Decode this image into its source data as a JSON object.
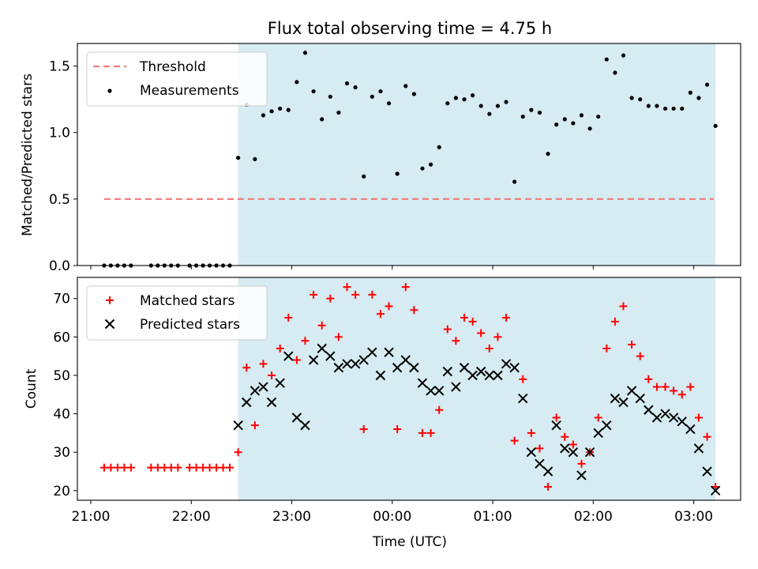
{
  "figure": {
    "title": "Flux total observing time = 4.75 h",
    "xlabel": "Time (UTC)"
  },
  "colors": {
    "highlight": "#add8e6",
    "threshold": "#f08080",
    "measurement": "#000000",
    "matched": "#ff0000",
    "predicted": "#000000"
  },
  "chart_data": [
    {
      "type": "scatter",
      "panel": "top",
      "ylabel": "Matched/Predicted stars",
      "xlim": [
        "20:52",
        "03:28"
      ],
      "ylim": [
        0,
        1.67
      ],
      "yticks": [
        0.0,
        0.5,
        1.0,
        1.5
      ],
      "xticks": [
        "21:00",
        "22:00",
        "23:00",
        "00:00",
        "01:00",
        "02:00",
        "03:00"
      ],
      "legend": {
        "position": "top-left",
        "entries": [
          "Threshold",
          "Measurements"
        ]
      },
      "highlight": {
        "from": "22:28",
        "to": "03:13"
      },
      "threshold": {
        "name": "Threshold",
        "y": 0.5,
        "from": "21:08",
        "to": "03:12"
      },
      "series": [
        {
          "name": "Measurements",
          "points": [
            [
              "21:08",
              0.0
            ],
            [
              "21:12",
              0.0
            ],
            [
              "21:16",
              0.0
            ],
            [
              "21:20",
              0.0
            ],
            [
              "21:24",
              0.0
            ],
            [
              "21:36",
              0.0
            ],
            [
              "21:40",
              0.0
            ],
            [
              "21:44",
              0.0
            ],
            [
              "21:48",
              0.0
            ],
            [
              "21:52",
              0.0
            ],
            [
              "21:59",
              0.0
            ],
            [
              "22:03",
              0.0
            ],
            [
              "22:07",
              0.0
            ],
            [
              "22:11",
              0.0
            ],
            [
              "22:15",
              0.0
            ],
            [
              "22:19",
              0.0
            ],
            [
              "22:23",
              0.0
            ],
            [
              "22:28",
              0.81
            ],
            [
              "22:33",
              1.21
            ],
            [
              "22:38",
              0.8
            ],
            [
              "22:43",
              1.13
            ],
            [
              "22:48",
              1.16
            ],
            [
              "22:53",
              1.18
            ],
            [
              "22:58",
              1.17
            ],
            [
              "23:03",
              1.38
            ],
            [
              "23:08",
              1.6
            ],
            [
              "23:13",
              1.31
            ],
            [
              "23:18",
              1.1
            ],
            [
              "23:23",
              1.27
            ],
            [
              "23:28",
              1.15
            ],
            [
              "23:33",
              1.37
            ],
            [
              "23:38",
              1.34
            ],
            [
              "23:43",
              0.67
            ],
            [
              "23:48",
              1.27
            ],
            [
              "23:53",
              1.31
            ],
            [
              "23:58",
              1.22
            ],
            [
              "00:03",
              0.69
            ],
            [
              "00:08",
              1.35
            ],
            [
              "00:13",
              1.29
            ],
            [
              "00:18",
              0.73
            ],
            [
              "00:23",
              0.76
            ],
            [
              "00:28",
              0.89
            ],
            [
              "00:33",
              1.22
            ],
            [
              "00:38",
              1.26
            ],
            [
              "00:43",
              1.25
            ],
            [
              "00:48",
              1.28
            ],
            [
              "00:53",
              1.2
            ],
            [
              "00:58",
              1.14
            ],
            [
              "01:03",
              1.2
            ],
            [
              "01:08",
              1.23
            ],
            [
              "01:13",
              0.63
            ],
            [
              "01:18",
              1.12
            ],
            [
              "01:23",
              1.17
            ],
            [
              "01:28",
              1.15
            ],
            [
              "01:33",
              0.84
            ],
            [
              "01:38",
              1.06
            ],
            [
              "01:43",
              1.1
            ],
            [
              "01:48",
              1.07
            ],
            [
              "01:53",
              1.13
            ],
            [
              "01:58",
              1.03
            ],
            [
              "02:03",
              1.12
            ],
            [
              "02:08",
              1.55
            ],
            [
              "02:13",
              1.45
            ],
            [
              "02:18",
              1.58
            ],
            [
              "02:23",
              1.26
            ],
            [
              "02:28",
              1.25
            ],
            [
              "02:33",
              1.2
            ],
            [
              "02:38",
              1.2
            ],
            [
              "02:43",
              1.18
            ],
            [
              "02:48",
              1.18
            ],
            [
              "02:53",
              1.18
            ],
            [
              "02:58",
              1.3
            ],
            [
              "03:03",
              1.26
            ],
            [
              "03:08",
              1.36
            ],
            [
              "03:13",
              1.05
            ]
          ]
        }
      ]
    },
    {
      "type": "scatter",
      "panel": "bottom",
      "ylabel": "Count",
      "xlim": [
        "20:52",
        "03:28"
      ],
      "ylim": [
        17.5,
        75.5
      ],
      "yticks": [
        20,
        30,
        40,
        50,
        60,
        70
      ],
      "xticks": [
        "21:00",
        "22:00",
        "23:00",
        "00:00",
        "01:00",
        "02:00",
        "03:00"
      ],
      "xlabel": "Time (UTC)",
      "legend": {
        "position": "top-left",
        "entries": [
          "Matched stars",
          "Predicted stars"
        ]
      },
      "highlight": {
        "from": "22:28",
        "to": "03:13"
      },
      "series": [
        {
          "name": "Matched stars",
          "marker": "+",
          "points": [
            [
              "21:08",
              26
            ],
            [
              "21:12",
              26
            ],
            [
              "21:16",
              26
            ],
            [
              "21:20",
              26
            ],
            [
              "21:24",
              26
            ],
            [
              "21:36",
              26
            ],
            [
              "21:40",
              26
            ],
            [
              "21:44",
              26
            ],
            [
              "21:48",
              26
            ],
            [
              "21:52",
              26
            ],
            [
              "21:59",
              26
            ],
            [
              "22:03",
              26
            ],
            [
              "22:07",
              26
            ],
            [
              "22:11",
              26
            ],
            [
              "22:15",
              26
            ],
            [
              "22:19",
              26
            ],
            [
              "22:23",
              26
            ],
            [
              "22:28",
              30
            ],
            [
              "22:33",
              52
            ],
            [
              "22:38",
              37
            ],
            [
              "22:43",
              53
            ],
            [
              "22:48",
              50
            ],
            [
              "22:53",
              57
            ],
            [
              "22:58",
              65
            ],
            [
              "23:03",
              54
            ],
            [
              "23:08",
              59
            ],
            [
              "23:13",
              71
            ],
            [
              "23:18",
              63
            ],
            [
              "23:23",
              70
            ],
            [
              "23:28",
              60
            ],
            [
              "23:33",
              73
            ],
            [
              "23:38",
              71
            ],
            [
              "23:43",
              36
            ],
            [
              "23:48",
              71
            ],
            [
              "23:53",
              66
            ],
            [
              "23:58",
              68
            ],
            [
              "00:03",
              36
            ],
            [
              "00:08",
              73
            ],
            [
              "00:13",
              67
            ],
            [
              "00:18",
              35
            ],
            [
              "00:23",
              35
            ],
            [
              "00:28",
              41
            ],
            [
              "00:33",
              62
            ],
            [
              "00:38",
              59
            ],
            [
              "00:43",
              65
            ],
            [
              "00:48",
              64
            ],
            [
              "00:53",
              61
            ],
            [
              "00:58",
              57
            ],
            [
              "01:03",
              60
            ],
            [
              "01:08",
              65
            ],
            [
              "01:13",
              33
            ],
            [
              "01:18",
              49
            ],
            [
              "01:23",
              35
            ],
            [
              "01:28",
              31
            ],
            [
              "01:33",
              21
            ],
            [
              "01:38",
              39
            ],
            [
              "01:43",
              34
            ],
            [
              "01:48",
              32
            ],
            [
              "01:53",
              27
            ],
            [
              "01:58",
              30
            ],
            [
              "02:03",
              39
            ],
            [
              "02:08",
              57
            ],
            [
              "02:13",
              64
            ],
            [
              "02:18",
              68
            ],
            [
              "02:23",
              58
            ],
            [
              "02:28",
              55
            ],
            [
              "02:33",
              49
            ],
            [
              "02:38",
              47
            ],
            [
              "02:43",
              47
            ],
            [
              "02:48",
              46
            ],
            [
              "02:53",
              45
            ],
            [
              "02:58",
              47
            ],
            [
              "03:03",
              39
            ],
            [
              "03:08",
              34
            ],
            [
              "03:13",
              21
            ]
          ]
        },
        {
          "name": "Predicted stars",
          "marker": "x",
          "points": [
            [
              "22:28",
              37
            ],
            [
              "22:33",
              43
            ],
            [
              "22:38",
              46
            ],
            [
              "22:43",
              47
            ],
            [
              "22:48",
              43
            ],
            [
              "22:53",
              48
            ],
            [
              "22:58",
              55
            ],
            [
              "23:03",
              39
            ],
            [
              "23:08",
              37
            ],
            [
              "23:13",
              54
            ],
            [
              "23:18",
              57
            ],
            [
              "23:23",
              55
            ],
            [
              "23:28",
              52
            ],
            [
              "23:33",
              53
            ],
            [
              "23:38",
              53
            ],
            [
              "23:43",
              54
            ],
            [
              "23:48",
              56
            ],
            [
              "23:53",
              50
            ],
            [
              "23:58",
              56
            ],
            [
              "00:03",
              52
            ],
            [
              "00:08",
              54
            ],
            [
              "00:13",
              52
            ],
            [
              "00:18",
              48
            ],
            [
              "00:23",
              46
            ],
            [
              "00:28",
              46
            ],
            [
              "00:33",
              51
            ],
            [
              "00:38",
              47
            ],
            [
              "00:43",
              52
            ],
            [
              "00:48",
              50
            ],
            [
              "00:53",
              51
            ],
            [
              "00:58",
              50
            ],
            [
              "01:03",
              50
            ],
            [
              "01:08",
              53
            ],
            [
              "01:13",
              52
            ],
            [
              "01:18",
              44
            ],
            [
              "01:23",
              30
            ],
            [
              "01:28",
              27
            ],
            [
              "01:33",
              25
            ],
            [
              "01:38",
              37
            ],
            [
              "01:43",
              31
            ],
            [
              "01:48",
              30
            ],
            [
              "01:53",
              24
            ],
            [
              "01:58",
              30
            ],
            [
              "02:03",
              35
            ],
            [
              "02:08",
              37
            ],
            [
              "02:13",
              44
            ],
            [
              "02:18",
              43
            ],
            [
              "02:23",
              46
            ],
            [
              "02:28",
              44
            ],
            [
              "02:33",
              41
            ],
            [
              "02:38",
              39
            ],
            [
              "02:43",
              40
            ],
            [
              "02:48",
              39
            ],
            [
              "02:53",
              38
            ],
            [
              "02:58",
              36
            ],
            [
              "03:03",
              31
            ],
            [
              "03:08",
              25
            ],
            [
              "03:13",
              20
            ]
          ]
        }
      ]
    }
  ]
}
